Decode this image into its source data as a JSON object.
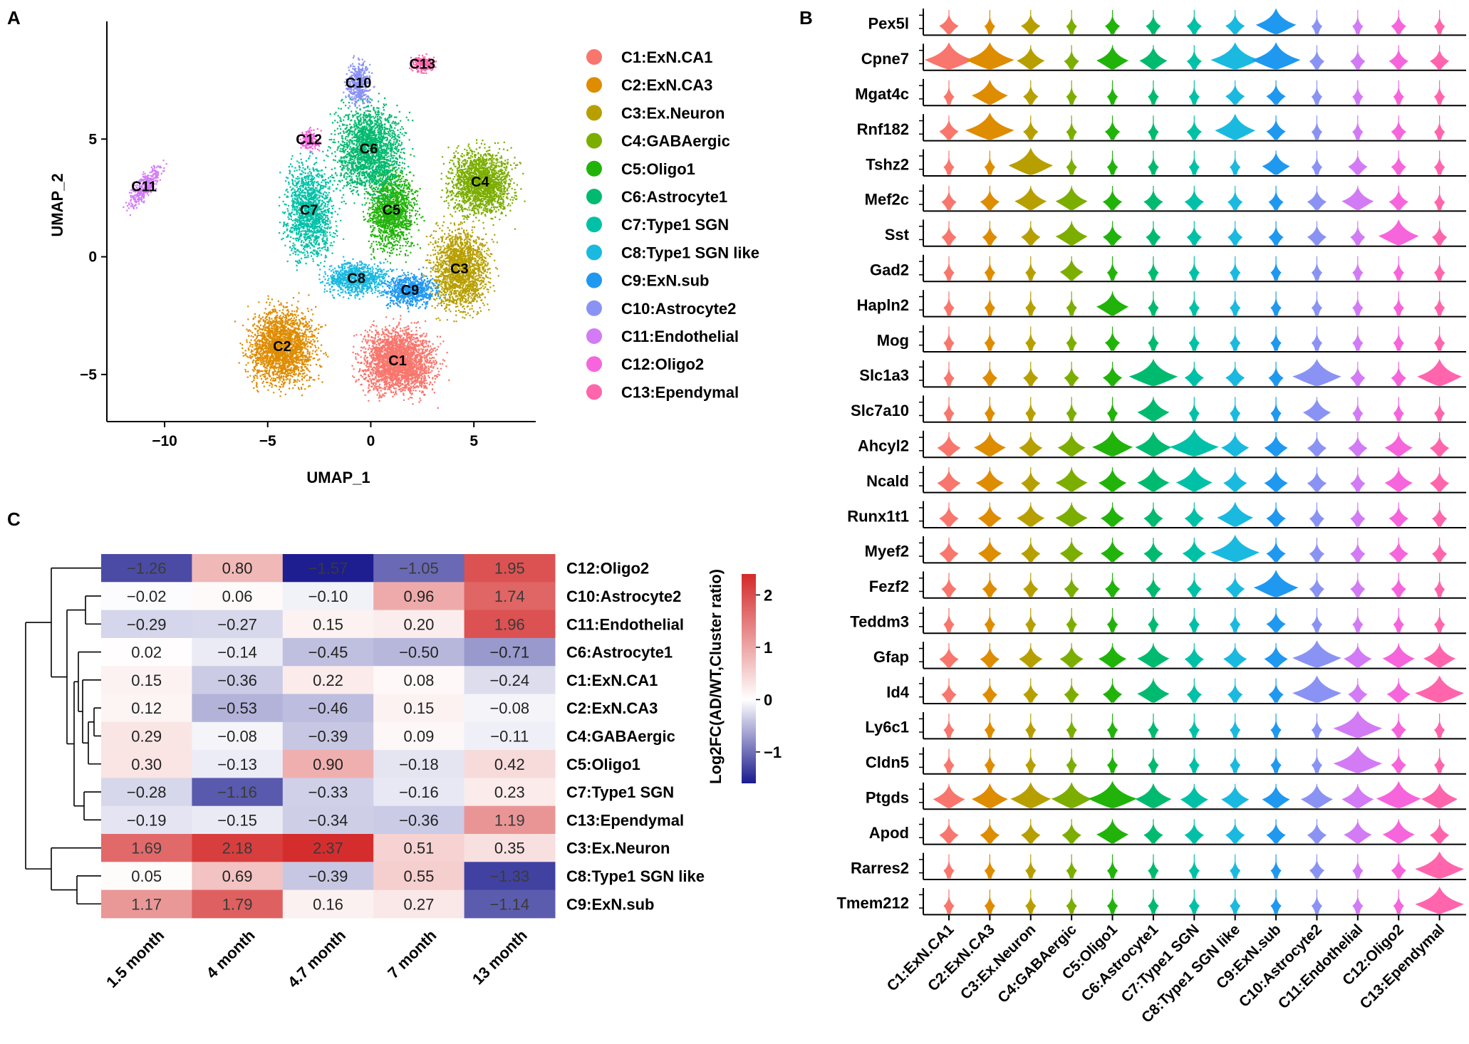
{
  "panels": {
    "A": "A",
    "B": "B",
    "C": "C"
  },
  "chart_data": [
    {
      "type": "scatter",
      "title": "",
      "xlabel": "UMAP_1",
      "ylabel": "UMAP_2",
      "xlim": [
        -12.8,
        8
      ],
      "ylim": [
        -7,
        10
      ],
      "xticks": [
        -10,
        -5,
        0,
        5
      ],
      "xtick_labels": [
        "−10",
        "−5",
        "0",
        "5"
      ],
      "yticks": [
        -5,
        0,
        5
      ],
      "ytick_labels": [
        "−5",
        "0",
        "5"
      ],
      "grid": false,
      "legend_position": "right",
      "clusters": [
        {
          "id": "C1",
          "name": "C1:ExN.CA1",
          "color": "#f8766d",
          "center": [
            1.3,
            -4.4
          ]
        },
        {
          "id": "C2",
          "name": "C2:ExN.CA3",
          "color": "#de8c00",
          "center": [
            -4.3,
            -3.8
          ]
        },
        {
          "id": "C3",
          "name": "C3:Ex.Neuron",
          "color": "#b79f00",
          "center": [
            4.3,
            -0.5
          ]
        },
        {
          "id": "C4",
          "name": "C4:GABAergic",
          "color": "#7cae00",
          "center": [
            5.3,
            3.2
          ]
        },
        {
          "id": "C5",
          "name": "C5:Oligo1",
          "color": "#21b30a",
          "center": [
            1.0,
            2.0
          ]
        },
        {
          "id": "C6",
          "name": "C6:Astrocyte1",
          "color": "#00ba6f",
          "center": [
            -0.1,
            4.6
          ]
        },
        {
          "id": "C7",
          "name": "C7:Type1 SGN",
          "color": "#00c1a7",
          "center": [
            -3.0,
            2.0
          ]
        },
        {
          "id": "C8",
          "name": "C8:Type1 SGN like",
          "color": "#1ab9e0",
          "center": [
            -0.7,
            -0.9
          ]
        },
        {
          "id": "C9",
          "name": "C9:ExN.sub",
          "color": "#1f98f0",
          "center": [
            1.9,
            -1.4
          ]
        },
        {
          "id": "C10",
          "name": "C10:Astrocyte2",
          "color": "#8a93f3",
          "center": [
            -0.6,
            7.4
          ]
        },
        {
          "id": "C11",
          "name": "C11:Endothelial",
          "color": "#d27bf5",
          "center": [
            -11.0,
            3.0
          ]
        },
        {
          "id": "C12",
          "name": "C12:Oligo2",
          "color": "#f665dc",
          "center": [
            -3.0,
            5.0
          ]
        },
        {
          "id": "C13",
          "name": "C13:Ependymal",
          "color": "#ff65ac",
          "center": [
            2.5,
            8.2
          ]
        }
      ]
    },
    {
      "type": "violin",
      "title": "",
      "genes": [
        "Pex5l",
        "Cpne7",
        "Mgat4c",
        "Rnf182",
        "Tshz2",
        "Mef2c",
        "Sst",
        "Gad2",
        "Hapln2",
        "Mog",
        "Slc1a3",
        "Slc7a10",
        "Ahcyl2",
        "Ncald",
        "Runx1t1",
        "Myef2",
        "Fezf2",
        "Teddm3",
        "Gfap",
        "Id4",
        "Ly6c1",
        "Cldn5",
        "Ptgds",
        "Apod",
        "Rarres2",
        "Tmem212"
      ],
      "categories": [
        "C1:ExN.CA1",
        "C2:ExN.CA3",
        "C3:Ex.Neuron",
        "C4:GABAergic",
        "C5:Oligo1",
        "C6:Astrocyte1",
        "C7:Type1 SGN",
        "C8:Type1 SGN like",
        "C9:ExN.sub",
        "C10:Astrocyte2",
        "C11:Endothelial",
        "C12:Oligo2",
        "C13:Ependymal"
      ],
      "relative_width": [
        [
          0.3,
          0.1,
          0.3,
          0.1,
          0.2,
          0.2,
          0.2,
          0.3,
          0.8,
          0.1,
          0.1,
          0.2,
          0.1
        ],
        [
          1.0,
          1.0,
          0.5,
          0.2,
          0.6,
          0.5,
          0.2,
          1.0,
          1.0,
          0.2,
          0.2,
          0.3,
          0.3
        ],
        [
          0.1,
          0.7,
          0.2,
          0.1,
          0.1,
          0.1,
          0.1,
          0.3,
          0.3,
          0.1,
          0.1,
          0.1,
          0.1
        ],
        [
          0.3,
          1.0,
          0.2,
          0.1,
          0.2,
          0.1,
          0.2,
          0.8,
          0.3,
          0.1,
          0.1,
          0.2,
          0.1
        ],
        [
          0.1,
          0.1,
          0.9,
          0.1,
          0.1,
          0.1,
          0.1,
          0.1,
          0.5,
          0.1,
          0.3,
          0.2,
          0.1
        ],
        [
          0.2,
          0.3,
          0.6,
          0.6,
          0.3,
          0.3,
          0.3,
          0.2,
          0.2,
          0.3,
          0.6,
          0.3,
          0.1
        ],
        [
          0.2,
          0.2,
          0.3,
          0.6,
          0.3,
          0.2,
          0.2,
          0.2,
          0.2,
          0.3,
          0.2,
          0.8,
          0.2
        ],
        [
          0.1,
          0.1,
          0.1,
          0.4,
          0.1,
          0.1,
          0.1,
          0.1,
          0.1,
          0.1,
          0.1,
          0.1,
          0.1
        ],
        [
          0.1,
          0.1,
          0.1,
          0.1,
          0.6,
          0.1,
          0.1,
          0.1,
          0.1,
          0.1,
          0.1,
          0.1,
          0.1
        ],
        [
          0.1,
          0.1,
          0.1,
          0.1,
          0.2,
          0.1,
          0.1,
          0.1,
          0.1,
          0.1,
          0.1,
          0.1,
          0.1
        ],
        [
          0.1,
          0.2,
          0.2,
          0.2,
          0.3,
          1.0,
          0.3,
          0.3,
          0.2,
          1.0,
          0.2,
          0.2,
          0.9
        ],
        [
          0.1,
          0.1,
          0.1,
          0.1,
          0.1,
          0.6,
          0.1,
          0.1,
          0.1,
          0.5,
          0.1,
          0.1,
          0.1
        ],
        [
          0.4,
          0.6,
          0.4,
          0.5,
          0.8,
          0.7,
          1.0,
          0.5,
          0.4,
          0.3,
          0.3,
          0.5,
          0.3
        ],
        [
          0.4,
          0.5,
          0.3,
          0.6,
          0.5,
          0.6,
          0.7,
          0.4,
          0.4,
          0.3,
          0.2,
          0.5,
          0.3
        ],
        [
          0.3,
          0.4,
          0.5,
          0.6,
          0.4,
          0.3,
          0.3,
          0.7,
          0.3,
          0.2,
          0.2,
          0.3,
          0.2
        ],
        [
          0.3,
          0.4,
          0.3,
          0.4,
          0.4,
          0.3,
          0.4,
          1.0,
          0.3,
          0.2,
          0.2,
          0.3,
          0.2
        ],
        [
          0.2,
          0.2,
          0.2,
          0.2,
          0.2,
          0.2,
          0.2,
          0.3,
          0.9,
          0.2,
          0.2,
          0.2,
          0.1
        ],
        [
          0.1,
          0.1,
          0.1,
          0.1,
          0.1,
          0.1,
          0.1,
          0.1,
          0.3,
          0.1,
          0.1,
          0.1,
          0.1
        ],
        [
          0.3,
          0.3,
          0.4,
          0.4,
          0.5,
          0.6,
          0.3,
          0.4,
          0.4,
          1.0,
          0.5,
          0.6,
          0.6
        ],
        [
          0.2,
          0.2,
          0.2,
          0.2,
          0.3,
          0.6,
          0.2,
          0.2,
          0.2,
          1.0,
          0.3,
          0.4,
          1.0
        ],
        [
          0.1,
          0.1,
          0.1,
          0.1,
          0.1,
          0.1,
          0.1,
          0.1,
          0.1,
          0.1,
          1.0,
          0.2,
          0.1
        ],
        [
          0.1,
          0.1,
          0.1,
          0.1,
          0.1,
          0.1,
          0.1,
          0.1,
          0.1,
          0.1,
          1.0,
          0.2,
          0.1
        ],
        [
          0.6,
          0.7,
          0.8,
          0.8,
          1.0,
          0.7,
          0.5,
          0.5,
          0.5,
          0.6,
          0.6,
          0.9,
          0.7
        ],
        [
          0.3,
          0.3,
          0.3,
          0.3,
          0.6,
          0.3,
          0.3,
          0.3,
          0.3,
          0.3,
          0.5,
          0.6,
          0.3
        ],
        [
          0.1,
          0.1,
          0.1,
          0.1,
          0.1,
          0.1,
          0.1,
          0.1,
          0.1,
          0.2,
          0.1,
          0.2,
          1.0
        ],
        [
          0.1,
          0.1,
          0.1,
          0.1,
          0.1,
          0.1,
          0.1,
          0.1,
          0.1,
          0.1,
          0.1,
          0.1,
          1.0
        ]
      ]
    },
    {
      "type": "heatmap",
      "title": "",
      "colorbar_label": "Log2FC(AD/WT,Cluster ratio)",
      "colorbar_range": [
        -1.6,
        2.4
      ],
      "colorbar_ticks": [
        -1,
        0,
        1,
        2
      ],
      "colorbar_tick_labels": [
        "−1",
        "0",
        "1",
        "2"
      ],
      "columns": [
        "1.5 month",
        "4 month",
        "4.7 month",
        "7 month",
        "13 month"
      ],
      "rows": [
        "C12:Oligo2",
        "C10:Astrocyte2",
        "C11:Endothelial",
        "C6:Astrocyte1",
        "C1:ExN.CA1",
        "C2:ExN.CA3",
        "C4:GABAergic",
        "C5:Oligo1",
        "C7:Type1 SGN",
        "C13:Ependymal",
        "C3:Ex.Neuron",
        "C8:Type1 SGN like",
        "C9:ExN.sub"
      ],
      "values": [
        [
          -1.26,
          0.8,
          -1.57,
          -1.05,
          1.95
        ],
        [
          -0.02,
          0.06,
          -0.1,
          0.96,
          1.74
        ],
        [
          -0.29,
          -0.27,
          0.15,
          0.2,
          1.96
        ],
        [
          0.02,
          -0.14,
          -0.45,
          -0.5,
          -0.71
        ],
        [
          0.15,
          -0.36,
          0.22,
          0.08,
          -0.24
        ],
        [
          0.12,
          -0.53,
          -0.46,
          0.15,
          -0.08
        ],
        [
          0.29,
          -0.08,
          -0.39,
          0.09,
          -0.11
        ],
        [
          0.3,
          -0.13,
          0.9,
          -0.18,
          0.42
        ],
        [
          -0.28,
          -1.16,
          -0.33,
          -0.16,
          0.23
        ],
        [
          -0.19,
          -0.15,
          -0.34,
          -0.36,
          1.19
        ],
        [
          1.69,
          2.18,
          2.37,
          0.51,
          0.35
        ],
        [
          0.05,
          0.69,
          -0.39,
          0.55,
          -1.33
        ],
        [
          1.17,
          1.79,
          0.16,
          0.27,
          -1.14
        ]
      ],
      "value_labels": [
        [
          "−1.26",
          "0.80",
          "−1.57",
          "−1.05",
          "1.95"
        ],
        [
          "−0.02",
          "0.06",
          "−0.10",
          "0.96",
          "1.74"
        ],
        [
          "−0.29",
          "−0.27",
          "0.15",
          "0.20",
          "1.96"
        ],
        [
          "0.02",
          "−0.14",
          "−0.45",
          "−0.50",
          "−0.71"
        ],
        [
          "0.15",
          "−0.36",
          "0.22",
          "0.08",
          "−0.24"
        ],
        [
          "0.12",
          "−0.53",
          "−0.46",
          "0.15",
          "−0.08"
        ],
        [
          "0.29",
          "−0.08",
          "−0.39",
          "0.09",
          "−0.11"
        ],
        [
          "0.30",
          "−0.13",
          "0.90",
          "−0.18",
          "0.42"
        ],
        [
          "−0.28",
          "−1.16",
          "−0.33",
          "−0.16",
          "0.23"
        ],
        [
          "−0.19",
          "−0.15",
          "−0.34",
          "−0.36",
          "1.19"
        ],
        [
          "1.69",
          "2.18",
          "2.37",
          "0.51",
          "0.35"
        ],
        [
          "0.05",
          "0.69",
          "−0.39",
          "0.55",
          "−1.33"
        ],
        [
          "1.17",
          "1.79",
          "0.16",
          "0.27",
          "−1.14"
        ]
      ]
    }
  ]
}
